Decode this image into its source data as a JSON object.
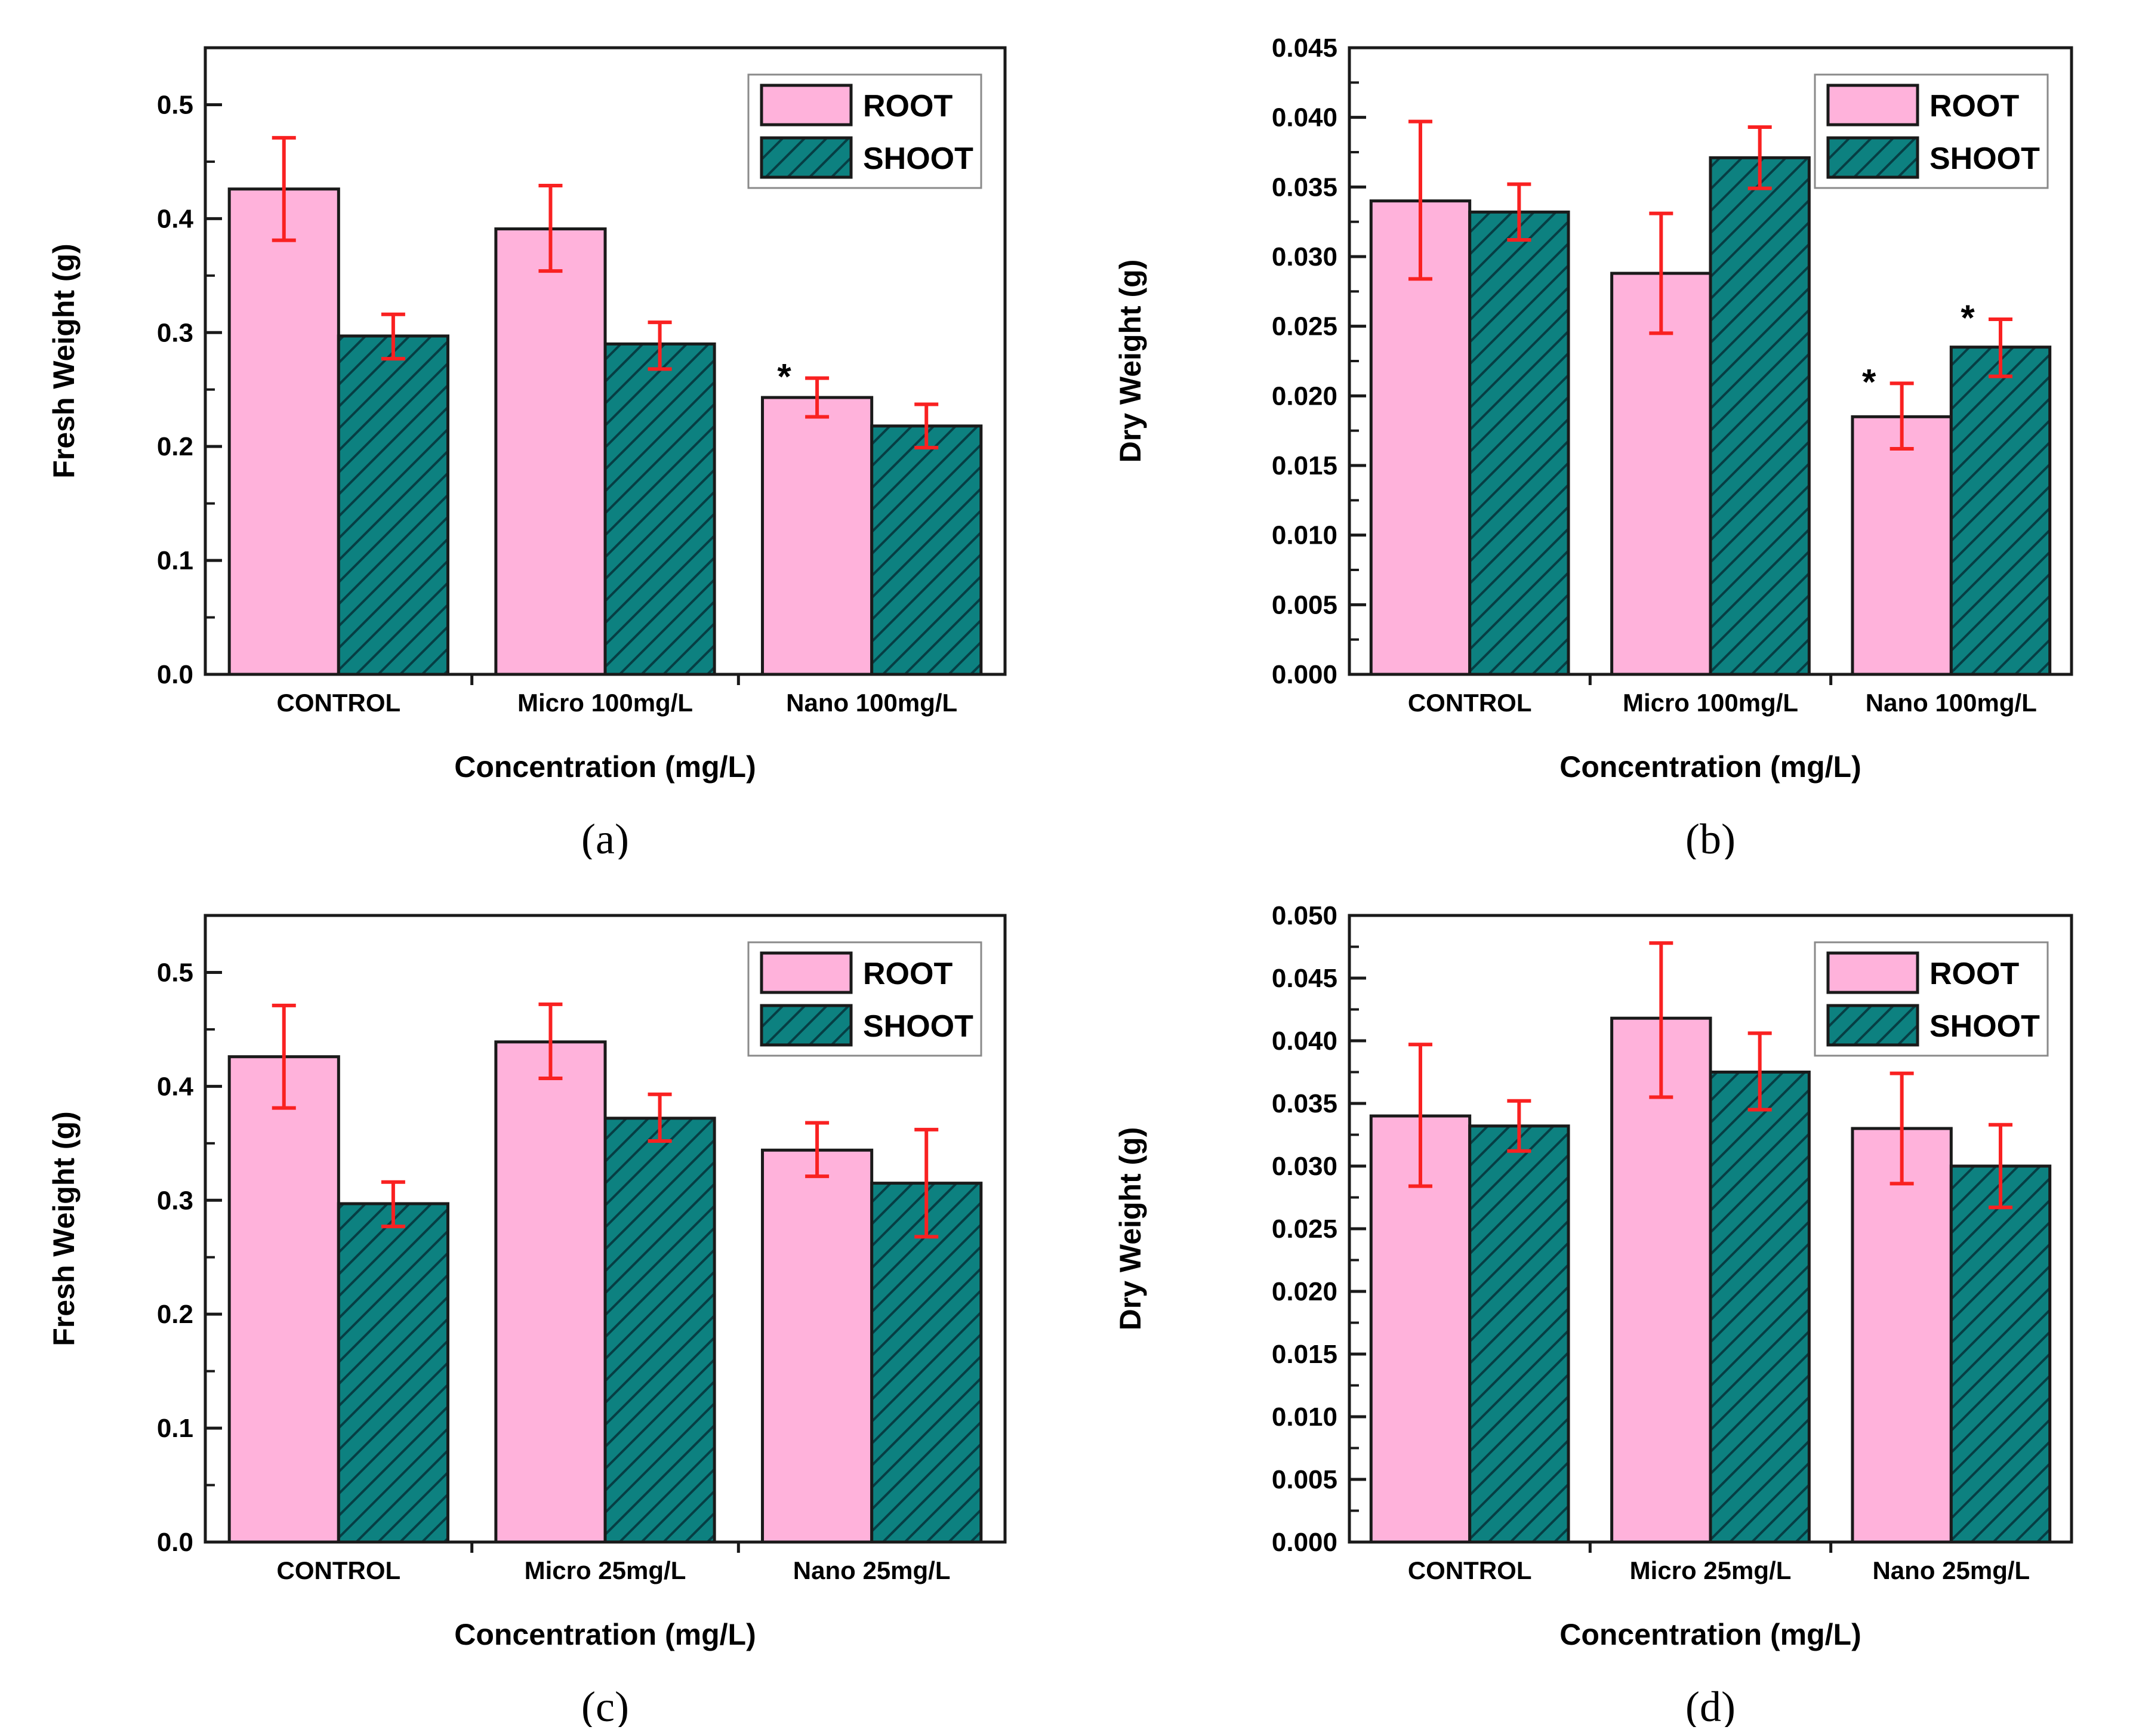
{
  "colors": {
    "root_fill": "#FFB2DB",
    "shoot_fill": "#0D8180",
    "hatch_line": "#063E44",
    "bar_stroke": "#1A1A1A",
    "axis_color": "#1A1A1A",
    "error_color": "#F92121",
    "text_color": "#000000",
    "legend_border": "#8A8A8A",
    "significance_marker": "#000000"
  },
  "legend": {
    "items": [
      {
        "label": "ROOT",
        "swatch": "root"
      },
      {
        "label": "SHOOT",
        "swatch": "shoot"
      }
    ],
    "position": "top-right"
  },
  "chart_data": [
    {
      "id": "a",
      "type": "bar",
      "panel_label": "(a)",
      "title": "",
      "ylabel": "Fresh Weight (g)",
      "xlabel": "Concentration (mg/L)",
      "categories": [
        "CONTROL",
        "Micro 100mg/L",
        "Nano 100mg/L"
      ],
      "ylim": [
        0,
        0.55
      ],
      "grid": false,
      "legend_position": "top-right-inside",
      "yticks": [
        {
          "v": 0.0,
          "label": "0.0"
        },
        {
          "v": 0.1,
          "label": "0.1"
        },
        {
          "v": 0.2,
          "label": "0.2"
        },
        {
          "v": 0.3,
          "label": "0.3"
        },
        {
          "v": 0.4,
          "label": "0.4"
        },
        {
          "v": 0.5,
          "label": "0.5"
        }
      ],
      "minor_step": 0.05,
      "series": [
        {
          "name": "ROOT",
          "values": [
            0.426,
            0.391,
            0.243
          ],
          "err_lo": [
            0.381,
            0.354,
            0.226
          ],
          "err_hi": [
            0.471,
            0.429,
            0.26
          ],
          "sig": [
            false,
            false,
            true
          ]
        },
        {
          "name": "SHOOT",
          "values": [
            0.297,
            0.29,
            0.218
          ],
          "err_lo": [
            0.277,
            0.268,
            0.199
          ],
          "err_hi": [
            0.316,
            0.309,
            0.237
          ],
          "sig": [
            false,
            false,
            false
          ]
        }
      ]
    },
    {
      "id": "b",
      "type": "bar",
      "panel_label": "(b)",
      "title": "",
      "ylabel": "Dry Weight (g)",
      "xlabel": "Concentration (mg/L)",
      "categories": [
        "CONTROL",
        "Micro 100mg/L",
        "Nano 100mg/L"
      ],
      "ylim": [
        0,
        0.045
      ],
      "grid": false,
      "legend_position": "top-right-inside",
      "yticks": [
        {
          "v": 0.0,
          "label": "0.000"
        },
        {
          "v": 0.005,
          "label": "0.005"
        },
        {
          "v": 0.01,
          "label": "0.010"
        },
        {
          "v": 0.015,
          "label": "0.015"
        },
        {
          "v": 0.02,
          "label": "0.020"
        },
        {
          "v": 0.025,
          "label": "0.025"
        },
        {
          "v": 0.03,
          "label": "0.030"
        },
        {
          "v": 0.035,
          "label": "0.035"
        },
        {
          "v": 0.04,
          "label": "0.040"
        },
        {
          "v": 0.045,
          "label": "0.045"
        }
      ],
      "minor_step": 0.0025,
      "series": [
        {
          "name": "ROOT",
          "values": [
            0.034,
            0.0288,
            0.0185
          ],
          "err_lo": [
            0.0284,
            0.0245,
            0.0162
          ],
          "err_hi": [
            0.0397,
            0.0331,
            0.0209
          ],
          "sig": [
            false,
            false,
            true
          ]
        },
        {
          "name": "SHOOT",
          "values": [
            0.0332,
            0.0371,
            0.0235
          ],
          "err_lo": [
            0.0312,
            0.0349,
            0.0214
          ],
          "err_hi": [
            0.0352,
            0.0393,
            0.0255
          ],
          "sig": [
            false,
            false,
            true
          ]
        }
      ]
    },
    {
      "id": "c",
      "type": "bar",
      "panel_label": "(c)",
      "title": "",
      "ylabel": "Fresh Weight (g)",
      "xlabel": "Concentration (mg/L)",
      "categories": [
        "CONTROL",
        "Micro 25mg/L",
        "Nano 25mg/L"
      ],
      "ylim": [
        0,
        0.55
      ],
      "grid": false,
      "legend_position": "top-right-inside",
      "yticks": [
        {
          "v": 0.0,
          "label": "0.0"
        },
        {
          "v": 0.1,
          "label": "0.1"
        },
        {
          "v": 0.2,
          "label": "0.2"
        },
        {
          "v": 0.3,
          "label": "0.3"
        },
        {
          "v": 0.4,
          "label": "0.4"
        },
        {
          "v": 0.5,
          "label": "0.5"
        }
      ],
      "minor_step": 0.05,
      "series": [
        {
          "name": "ROOT",
          "values": [
            0.426,
            0.439,
            0.344
          ],
          "err_lo": [
            0.381,
            0.407,
            0.321
          ],
          "err_hi": [
            0.471,
            0.472,
            0.368
          ],
          "sig": [
            false,
            false,
            false
          ]
        },
        {
          "name": "SHOOT",
          "values": [
            0.297,
            0.372,
            0.315
          ],
          "err_lo": [
            0.277,
            0.352,
            0.268
          ],
          "err_hi": [
            0.316,
            0.393,
            0.362
          ],
          "sig": [
            false,
            false,
            false
          ]
        }
      ]
    },
    {
      "id": "d",
      "type": "bar",
      "panel_label": "(d)",
      "title": "",
      "ylabel": "Dry Weight (g)",
      "xlabel": "Concentration (mg/L)",
      "categories": [
        "CONTROL",
        "Micro 25mg/L",
        "Nano 25mg/L"
      ],
      "ylim": [
        0,
        0.05
      ],
      "grid": false,
      "legend_position": "top-right-inside",
      "yticks": [
        {
          "v": 0.0,
          "label": "0.000"
        },
        {
          "v": 0.005,
          "label": "0.005"
        },
        {
          "v": 0.01,
          "label": "0.010"
        },
        {
          "v": 0.015,
          "label": "0.015"
        },
        {
          "v": 0.02,
          "label": "0.020"
        },
        {
          "v": 0.025,
          "label": "0.025"
        },
        {
          "v": 0.03,
          "label": "0.030"
        },
        {
          "v": 0.035,
          "label": "0.035"
        },
        {
          "v": 0.04,
          "label": "0.040"
        },
        {
          "v": 0.045,
          "label": "0.045"
        },
        {
          "v": 0.05,
          "label": "0.050"
        }
      ],
      "minor_step": 0.0025,
      "series": [
        {
          "name": "ROOT",
          "values": [
            0.034,
            0.0418,
            0.033
          ],
          "err_lo": [
            0.0284,
            0.0355,
            0.0286
          ],
          "err_hi": [
            0.0397,
            0.0478,
            0.0374
          ],
          "sig": [
            false,
            false,
            false
          ]
        },
        {
          "name": "SHOOT",
          "values": [
            0.0332,
            0.0375,
            0.03
          ],
          "err_lo": [
            0.0312,
            0.0345,
            0.0267
          ],
          "err_hi": [
            0.0352,
            0.0406,
            0.0333
          ],
          "sig": [
            false,
            false,
            false
          ]
        }
      ]
    }
  ]
}
